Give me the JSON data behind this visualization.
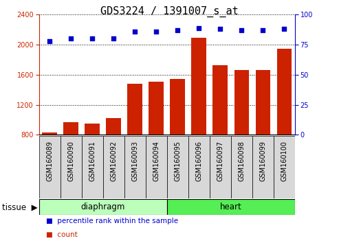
{
  "title": "GDS3224 / 1391007_s_at",
  "samples": [
    "GSM160089",
    "GSM160090",
    "GSM160091",
    "GSM160092",
    "GSM160093",
    "GSM160094",
    "GSM160095",
    "GSM160096",
    "GSM160097",
    "GSM160098",
    "GSM160099",
    "GSM160100"
  ],
  "counts": [
    830,
    970,
    950,
    1020,
    1480,
    1510,
    1540,
    2090,
    1730,
    1660,
    1660,
    1950
  ],
  "percentiles": [
    78,
    80,
    80,
    80,
    86,
    86,
    87,
    89,
    88,
    87,
    87,
    88
  ],
  "bar_color": "#cc2200",
  "dot_color": "#0000cc",
  "ylim_left": [
    800,
    2400
  ],
  "ylim_right": [
    0,
    100
  ],
  "yticks_left": [
    800,
    1200,
    1600,
    2000,
    2400
  ],
  "yticks_right": [
    0,
    25,
    50,
    75,
    100
  ],
  "tissue_groups": [
    {
      "label": "diaphragm",
      "start": 0,
      "end": 6,
      "color": "#bbffbb"
    },
    {
      "label": "heart",
      "start": 6,
      "end": 12,
      "color": "#55ee55"
    }
  ],
  "tissue_label": "tissue",
  "legend_items": [
    {
      "label": "count",
      "color": "#cc2200"
    },
    {
      "label": "percentile rank within the sample",
      "color": "#0000cc"
    }
  ],
  "plot_bg": "#ffffff",
  "tick_bg": "#d8d8d8",
  "title_fontsize": 11,
  "tick_fontsize": 7,
  "label_fontsize": 8.5
}
